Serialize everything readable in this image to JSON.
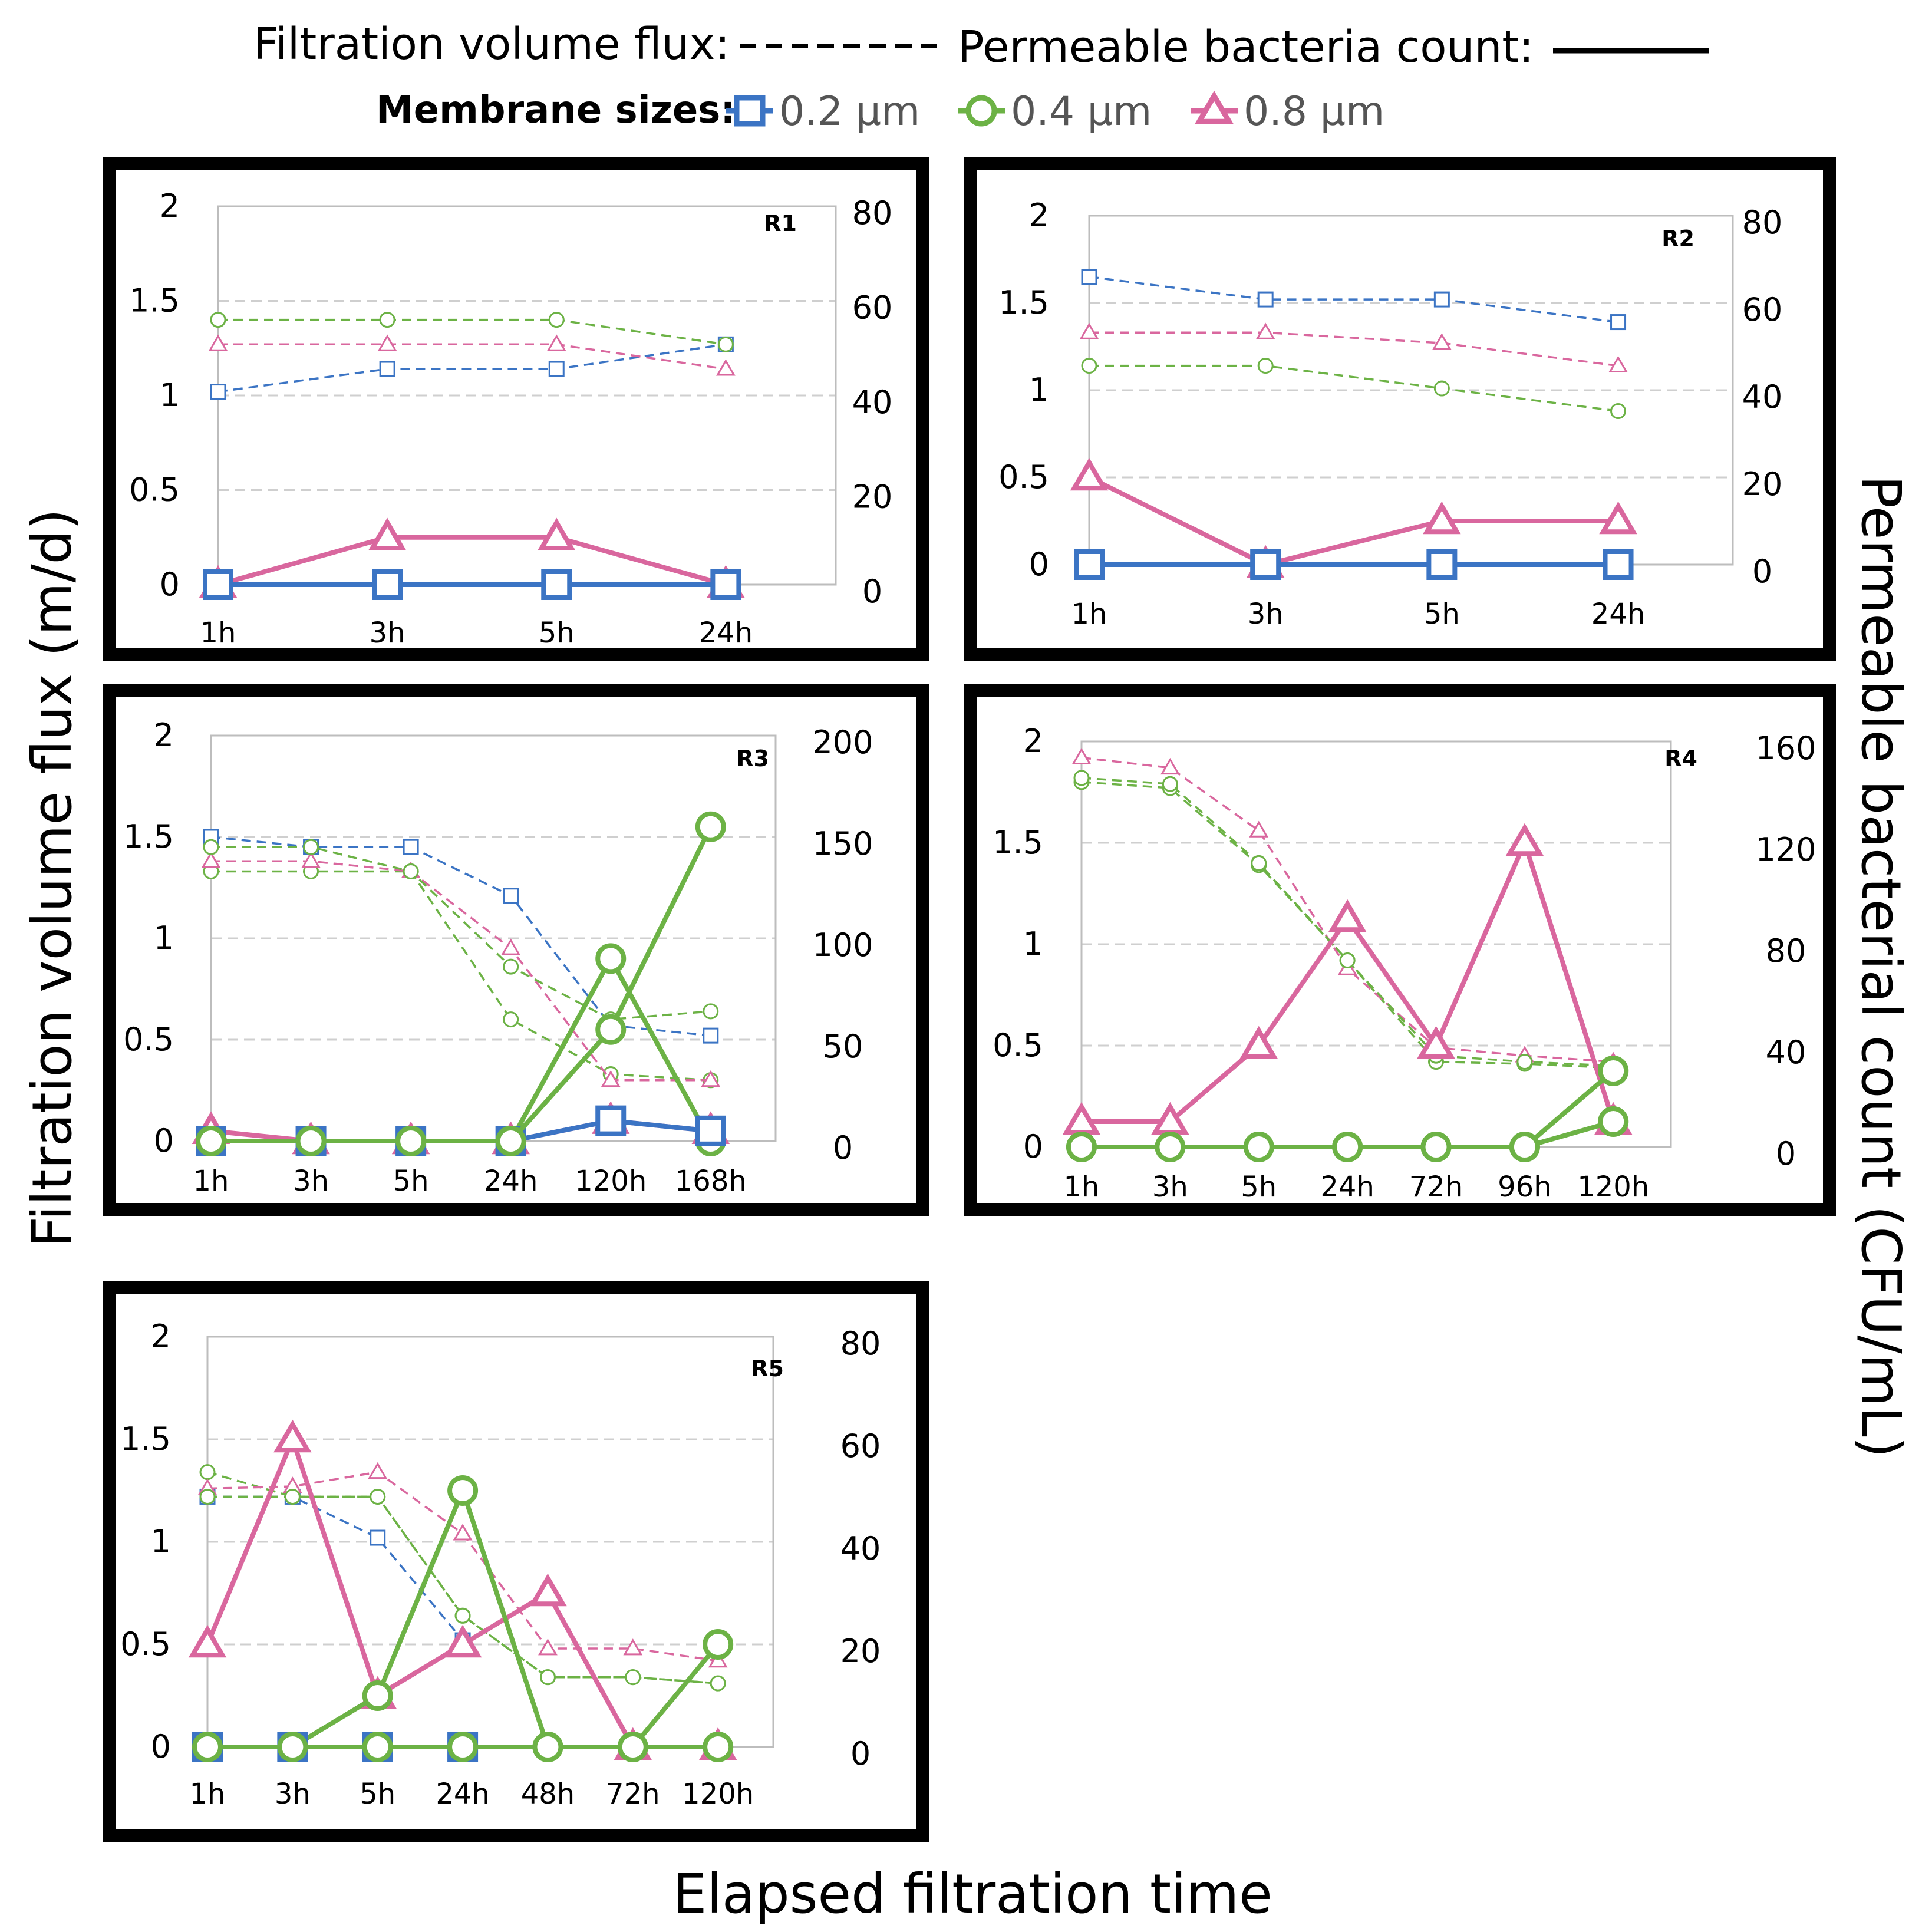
{
  "legend": {
    "flux_label": "Filtration volume flux:",
    "count_label": "Permeable bacteria count:",
    "sizes_label": "Membrane sizes:",
    "sizes": [
      {
        "label": "0.2 µm",
        "color": "#3b74c4",
        "marker": "square"
      },
      {
        "label": "0.4 µm",
        "color": "#6cb245",
        "marker": "circle"
      },
      {
        "label": "0.8 µm",
        "color": "#d9679e",
        "marker": "triangle"
      }
    ]
  },
  "axes": {
    "ylabel_left": "Filtration volume flux (m/d)",
    "ylabel_right": "Permeable bacterial count (CFU/mL)",
    "xlabel": "Elapsed filtration time"
  },
  "chart_data": [
    {
      "type": "line",
      "title": "R1",
      "categories": [
        "1h",
        "3h",
        "5h",
        "24h"
      ],
      "ylim": [
        0,
        2
      ],
      "yticks": [
        "0",
        "0.5",
        "1",
        "1.5",
        "2"
      ],
      "y2lim": [
        0,
        80
      ],
      "y2ticks": [
        "0",
        "20",
        "40",
        "60",
        "80"
      ],
      "flux": {
        "0.2 µm": [
          1.02,
          1.14,
          1.14,
          1.27
        ],
        "0.4 µm": [
          1.4,
          1.4,
          1.4,
          1.27
        ],
        "0.8 µm": [
          1.27,
          1.27,
          1.27,
          1.14
        ]
      },
      "count": {
        "0.2 µm": [
          0,
          0,
          0,
          0
        ],
        "0.4 µm": [
          0,
          0,
          0,
          0
        ],
        "0.8 µm": [
          0,
          10,
          10,
          0
        ]
      }
    },
    {
      "type": "line",
      "title": "R2",
      "categories": [
        "1h",
        "3h",
        "5h",
        "24h"
      ],
      "ylim": [
        0,
        2
      ],
      "yticks": [
        "0",
        "0.5",
        "1",
        "1.5",
        "2"
      ],
      "y2lim": [
        0,
        80
      ],
      "y2ticks": [
        "0",
        "20",
        "40",
        "60",
        "80"
      ],
      "flux": {
        "0.2 µm": [
          1.65,
          1.52,
          1.52,
          1.39
        ],
        "0.4 µm": [
          1.14,
          1.14,
          1.01,
          0.88
        ],
        "0.8 µm": [
          1.33,
          1.33,
          1.27,
          1.14
        ]
      },
      "count": {
        "0.2 µm": [
          0,
          0,
          0,
          0
        ],
        "0.4 µm": [
          0,
          0,
          0,
          0
        ],
        "0.8 µm": [
          20,
          0,
          10,
          10
        ]
      }
    },
    {
      "type": "line",
      "title": "R3",
      "categories": [
        "1h",
        "3h",
        "5h",
        "24h",
        "120h",
        "168h"
      ],
      "ylim": [
        0,
        2
      ],
      "yticks": [
        "0",
        "0.5",
        "1",
        "1.5",
        "2"
      ],
      "y2lim": [
        0,
        200
      ],
      "y2ticks": [
        "0",
        "50",
        "100",
        "150",
        "200"
      ],
      "flux": {
        "0.2 µm": [
          1.5,
          1.45,
          1.45,
          1.21,
          0.57,
          0.52
        ],
        "0.4 µm": [
          1.33,
          1.33,
          1.33,
          0.6,
          0.33,
          0.3
        ],
        "0.8 µm": [
          1.38,
          1.38,
          1.33,
          0.95,
          0.3,
          0.3
        ]
      },
      "flux_alt": {
        "0.4 µm": [
          1.45,
          1.45,
          1.33,
          0.86,
          0.6,
          0.64
        ]
      },
      "count": {
        "0.2 µm": [
          0,
          0,
          0,
          0,
          10,
          5
        ],
        "0.4 µm": [
          0,
          0,
          0,
          0,
          90,
          0
        ],
        "0.8 µm": [
          5,
          0,
          0,
          0,
          10,
          5
        ]
      },
      "count_alt": {
        "0.4 µm": [
          0,
          0,
          0,
          0,
          55,
          155
        ]
      }
    },
    {
      "type": "line",
      "title": "R4",
      "categories": [
        "1h",
        "3h",
        "5h",
        "24h",
        "72h",
        "96h",
        "120h"
      ],
      "ylim": [
        0,
        2
      ],
      "yticks": [
        "0",
        "0.5",
        "1",
        "1.5",
        "2"
      ],
      "y2lim": [
        0,
        160
      ],
      "y2ticks": [
        "0",
        "40",
        "80",
        "120",
        "160"
      ],
      "flux": {
        "0.4 µm": [
          1.8,
          1.77,
          1.39,
          0.92,
          0.42,
          0.41,
          0.39
        ],
        "0.8 µm": [
          1.92,
          1.87,
          1.56,
          0.88,
          0.49,
          0.45,
          0.42
        ]
      },
      "flux_alt": {
        "0.4 µm": [
          1.82,
          1.79,
          1.4,
          0.92,
          0.45,
          0.42,
          0.4
        ]
      },
      "count": {
        "0.4 µm": [
          0,
          0,
          0,
          0,
          0,
          0,
          10
        ],
        "0.8 µm": [
          10,
          10,
          40,
          90,
          40,
          120,
          10
        ]
      },
      "count_alt": {
        "0.4 µm": [
          0,
          0,
          0,
          0,
          0,
          0,
          30
        ]
      }
    },
    {
      "type": "line",
      "title": "R5",
      "categories": [
        "1h",
        "3h",
        "5h",
        "24h",
        "48h",
        "72h",
        "120h"
      ],
      "ylim": [
        0,
        2
      ],
      "yticks": [
        "0",
        "0.5",
        "1",
        "1.5",
        "2"
      ],
      "y2lim": [
        0,
        80
      ],
      "y2ticks": [
        "0",
        "20",
        "40",
        "60",
        "80"
      ],
      "flux": {
        "0.2 µm": [
          1.22,
          1.22,
          1.02,
          0.52,
          null,
          null,
          null
        ],
        "0.4 µm": [
          1.34,
          1.22,
          1.22,
          0.64,
          0.34,
          0.34,
          0.31
        ],
        "0.8 µm": [
          1.26,
          1.27,
          1.34,
          1.04,
          0.48,
          0.48,
          0.42
        ]
      },
      "flux_alt": {
        "0.4 µm": [
          1.22,
          1.22,
          1.22,
          0.64,
          0.34,
          0.34,
          0.31
        ]
      },
      "count": {
        "0.2 µm": [
          0,
          0,
          0,
          0,
          null,
          null,
          null
        ],
        "0.4 µm": [
          0,
          0,
          10,
          50,
          0,
          0,
          0
        ],
        "0.8 µm": [
          20,
          60,
          10,
          20,
          30,
          0,
          0
        ]
      },
      "count_alt": {
        "0.4 µm": [
          0,
          0,
          0,
          0,
          0,
          0,
          20
        ]
      }
    }
  ]
}
